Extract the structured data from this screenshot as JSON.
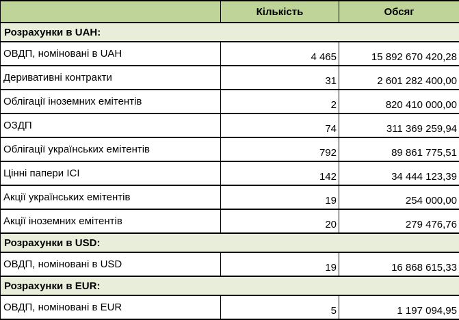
{
  "colors": {
    "header_bg": "#bfd499",
    "section_bg": "#e9eeda",
    "border": "#000000",
    "row_bg": "#ffffff",
    "text": "#000000"
  },
  "table": {
    "header": {
      "item": "",
      "quantity": "Кількість",
      "volume": "Обсяг"
    },
    "rows": [
      {
        "type": "section",
        "label": "Розрахунки в UAH:"
      },
      {
        "type": "data",
        "name": "ОВДП, номіновані в UAH",
        "quantity": "4 465",
        "volume": "15 892 670 420,28"
      },
      {
        "type": "data",
        "name": "Деривативні контракти",
        "quantity": "31",
        "volume": "2 601 282 400,00"
      },
      {
        "type": "data",
        "name": "Облігації іноземних емітентів",
        "quantity": "2",
        "volume": "820 410 000,00"
      },
      {
        "type": "data",
        "name": "ОЗДП",
        "quantity": "74",
        "volume": "311 369 259,94"
      },
      {
        "type": "data",
        "name": "Облігації українських емітентів",
        "quantity": "792",
        "volume": "89 861 775,51"
      },
      {
        "type": "data",
        "name": "Цінні папери ІСІ",
        "quantity": "142",
        "volume": "34 444 123,39"
      },
      {
        "type": "data",
        "name": "Акції українських емітентів",
        "quantity": "19",
        "volume": "254 000,00"
      },
      {
        "type": "data",
        "name": "Акції іноземних емітентів",
        "quantity": "20",
        "volume": "279 476,76"
      },
      {
        "type": "section",
        "label": "Розрахунки в USD:"
      },
      {
        "type": "data",
        "name": "ОВДП, номіновані в USD",
        "quantity": "19",
        "volume": "16 868 615,33"
      },
      {
        "type": "section",
        "label": "Розрахунки в EUR:"
      },
      {
        "type": "data",
        "name": "ОВДП, номіновані в EUR",
        "quantity": "5",
        "volume": "1 197 094,95"
      }
    ]
  }
}
